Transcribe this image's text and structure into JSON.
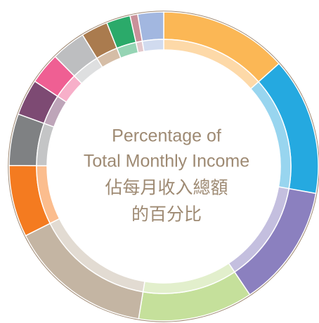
{
  "chart_data": {
    "type": "donut",
    "title_lines": [
      "Percentage of",
      "Total Monthly Income",
      "佔每月收入總額",
      "的百分比"
    ],
    "categories": [
      null,
      null,
      null,
      null,
      null,
      null,
      null,
      null,
      null,
      null,
      null,
      null,
      null,
      null
    ],
    "values": [
      13.4,
      14.4,
      12.8,
      12,
      15,
      7.5,
      5.4,
      3.8,
      3.3,
      3.6,
      2.8,
      2.5,
      0.8,
      2.7
    ],
    "colors": [
      "#fbb755",
      "#25a9e0",
      "#8b80bf",
      "#c5e09b",
      "#c4b5a3",
      "#f47b20",
      "#7f8183",
      "#7d4a73",
      "#ef5f93",
      "#bdbec0",
      "#aa7b4e",
      "#2baa6a",
      "#c9919a",
      "#a2b7e0"
    ],
    "inner_colors": [
      "#fdd9a8",
      "#98d5ef",
      "#c4bfdf",
      "#e2efcc",
      "#e2dbd2",
      "#fbbd8e",
      "#c4c5c6",
      "#bea5b9",
      "#f7afc9",
      "#dedfe0",
      "#d5bda6",
      "#95d4b4",
      "#e4c8cc",
      "#d1dbef"
    ]
  }
}
